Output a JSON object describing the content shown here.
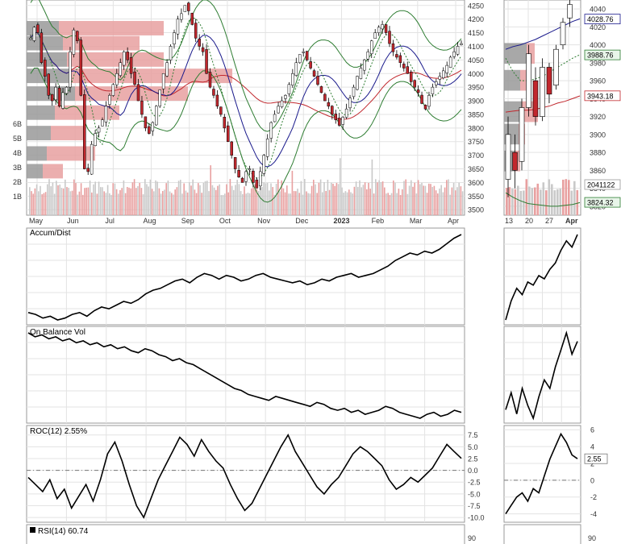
{
  "colors": {
    "up_candle": "#ffffff",
    "down_candle": "#c1272d",
    "candle_outline": "#000000",
    "sma_short": "#1a1a8c",
    "sma_long": "#c1272d",
    "bollinger": "#2e7d32",
    "ema_dotted": "#2e7d32",
    "volume_up": "#c9c9c9",
    "volume_down": "#e8a0a0",
    "volume_profile_gray": "#999999",
    "volume_profile_red": "#e8a0a0",
    "indicator_line": "#000000",
    "grid": "#e3e3e3",
    "zero_line": "#777777"
  },
  "chart_data": [
    {
      "id": "price",
      "type": "candlestick",
      "x_tick_labels": [
        "May",
        "Jun",
        "Jul",
        "Aug",
        "Sep",
        "Oct",
        "Nov",
        "Dec",
        "2023",
        "Feb",
        "Mar",
        "Apr"
      ],
      "y_tick_labels": [
        "4250",
        "4200",
        "4150",
        "4100",
        "4050",
        "4000",
        "3950",
        "3900",
        "3850",
        "3800",
        "3750",
        "3700",
        "3650",
        "3600",
        "3550",
        "3500"
      ],
      "ylim": [
        3480,
        4270
      ],
      "volume_axis_labels": [
        "6B",
        "5B",
        "4B",
        "3B",
        "2B",
        "1B"
      ],
      "volume_profile_levels_price": [
        4165,
        4110,
        4050,
        3990,
        3925,
        3855,
        3780,
        3705,
        3640
      ],
      "grid": true,
      "series": [
        {
          "values": [
            4130,
            4170,
            4150,
            4040,
            3990,
            3920,
            3900,
            3950,
            3880,
            3930,
            3950,
            4080,
            4160,
            4120,
            3920,
            3650,
            3640,
            3740,
            3780,
            3800,
            3830,
            3880,
            3920,
            3960,
            4000,
            4040,
            4080,
            4050,
            4000,
            3960,
            3900,
            3850,
            3800,
            3780,
            3820,
            3880,
            3940,
            4000,
            4040,
            4100,
            4150,
            4200,
            4220,
            4250,
            4230,
            4180,
            4130,
            4100,
            4080,
            4000,
            3950,
            3920,
            3880,
            3850,
            3800,
            3750,
            3700,
            3650,
            3620,
            3600,
            3640,
            3650,
            3600,
            3580,
            3640,
            3700,
            3760,
            3820,
            3850,
            3880,
            3900,
            3920,
            3960,
            4000,
            4040,
            4070,
            4080,
            4050,
            4020,
            3990,
            3960,
            3930,
            3900,
            3880,
            3850,
            3830,
            3810,
            3840,
            3870,
            3910,
            3950,
            3990,
            4020,
            4050,
            4080,
            4120,
            4150,
            4170,
            4180,
            4150,
            4110,
            4080,
            4060,
            4040,
            4020,
            4000,
            3970,
            3950,
            3930,
            3890,
            3870,
            3920,
            3950,
            3970,
            3990,
            4010,
            4030,
            4060,
            4080,
            4100,
            4110
          ]
        }
      ],
      "overlay_labels": [
        "4028.76",
        "3988.76",
        "3943.18",
        "3824.32"
      ]
    },
    {
      "id": "price-zoom",
      "type": "candlestick",
      "x_tick_labels": [
        "13",
        "20",
        "27",
        "Apr"
      ],
      "y_tick_labels": [
        "4040",
        "4020",
        "4000",
        "3980",
        "3960",
        "3940",
        "3920",
        "3900",
        "3880",
        "3860",
        "3840",
        "3820"
      ],
      "ylim": [
        3810,
        4050
      ],
      "value_labels": [
        "4028.76",
        "3988.76",
        "3943.18",
        "3824.32",
        "2041122"
      ]
    },
    {
      "id": "accum-dist",
      "type": "line",
      "title": "Accum/Dist",
      "series": [
        {
          "name": "Accum/Dist",
          "values": [
            10,
            9,
            7,
            8,
            6,
            7,
            9,
            10,
            8,
            11,
            13,
            12,
            14,
            16,
            15,
            17,
            20,
            22,
            23,
            25,
            27,
            28,
            26,
            29,
            31,
            30,
            28,
            30,
            29,
            27,
            28,
            30,
            31,
            29,
            28,
            27,
            26,
            27,
            25,
            26,
            28,
            27,
            29,
            30,
            31,
            29,
            30,
            31,
            33,
            35,
            38,
            40,
            42,
            41,
            43,
            42,
            44,
            47,
            50,
            52
          ]
        }
      ]
    },
    {
      "id": "obv",
      "type": "line",
      "title": "On Balance Vol",
      "series": [
        {
          "name": "On Balance Vol",
          "values": [
            50,
            48,
            49,
            47,
            48,
            46,
            47,
            45,
            46,
            44,
            45,
            43,
            44,
            42,
            43,
            41,
            40,
            42,
            41,
            39,
            38,
            36,
            37,
            35,
            34,
            32,
            30,
            28,
            26,
            24,
            22,
            21,
            19,
            18,
            17,
            16,
            18,
            17,
            16,
            15,
            14,
            13,
            15,
            14,
            12,
            11,
            12,
            10,
            11,
            9,
            10,
            11,
            13,
            12,
            10,
            9,
            8,
            7,
            9,
            10,
            8,
            9,
            11,
            10
          ]
        }
      ]
    },
    {
      "id": "roc",
      "type": "line",
      "title": "ROC(12) 2.55%",
      "y_tick_labels": [
        "7.5",
        "5.0",
        "2.5",
        "0.0",
        "-2.5",
        "-5.0",
        "-7.5",
        "-10.0"
      ],
      "ylim": [
        -11,
        9.5
      ],
      "series": [
        {
          "name": "ROC(12)",
          "values": [
            -1.5,
            -3.0,
            -4.5,
            -2.0,
            -6.0,
            -4.0,
            -8.0,
            -5.5,
            -3.0,
            -6.5,
            -2.0,
            3.5,
            6.0,
            2.0,
            -3.0,
            -7.5,
            -10.0,
            -6.0,
            -2.0,
            1.0,
            4.0,
            7.0,
            5.5,
            3.0,
            6.5,
            4.0,
            2.0,
            0.5,
            -3.0,
            -6.0,
            -8.5,
            -7.0,
            -4.0,
            -1.0,
            2.0,
            5.0,
            7.5,
            4.0,
            1.5,
            -1.0,
            -3.5,
            -5.0,
            -3.0,
            -1.5,
            1.0,
            3.5,
            5.0,
            4.0,
            2.5,
            1.0,
            -2.0,
            -4.0,
            -3.0,
            -1.5,
            -2.5,
            -1.0,
            0.5,
            3.0,
            5.5,
            4.0,
            2.55
          ]
        }
      ]
    },
    {
      "id": "roc-zoom",
      "type": "line",
      "y_tick_labels": [
        "6",
        "4",
        "2",
        "0",
        "-2",
        "-4"
      ],
      "ylim": [
        -5,
        6.5
      ],
      "value_labels": [
        "2.55"
      ],
      "series": [
        {
          "values": [
            -4.0,
            -3.0,
            -2.0,
            -1.5,
            -2.5,
            -1.0,
            -1.5,
            0.5,
            2.5,
            4.0,
            5.5,
            4.5,
            3.0,
            2.55
          ]
        }
      ]
    },
    {
      "id": "rsi",
      "type": "line",
      "title": "RSI(14) 60.74",
      "y_tick_labels": [
        "90"
      ]
    }
  ]
}
